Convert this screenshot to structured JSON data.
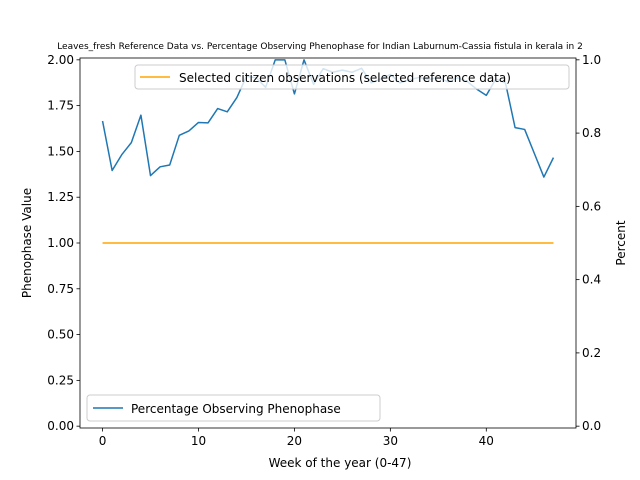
{
  "chart_data": {
    "type": "line",
    "title": "Leaves_fresh Reference Data vs. Percentage Observing Phenophase for Indian Laburnum-Cassia fistula in kerala in 2",
    "xlabel": "Week of the year (0-47)",
    "ylabel_left": "Phenophase Value",
    "ylabel_right": "Percent",
    "xlim": [
      -2.35,
      49.35
    ],
    "ylim_left": [
      -0.01,
      2.01
    ],
    "ylim_right": [
      -0.005,
      1.005
    ],
    "x_ticks": [
      0,
      10,
      20,
      30,
      40
    ],
    "y_ticks_left": [
      "0.00",
      "0.25",
      "0.50",
      "0.75",
      "1.00",
      "1.25",
      "1.50",
      "1.75",
      "2.00"
    ],
    "y_ticks_right": [
      "0.0",
      "0.2",
      "0.4",
      "0.6",
      "0.8",
      "1.0"
    ],
    "grid": false,
    "series": [
      {
        "name": "Selected citizen observations (selected reference data)",
        "axis": "left",
        "color": "#ffa500",
        "x": [
          0,
          47
        ],
        "values": [
          1.0,
          1.0
        ]
      },
      {
        "name": "Percentage Observing Phenophase",
        "axis": "right",
        "color": "#1f77b4",
        "x": [
          0,
          1,
          2,
          3,
          4,
          5,
          6,
          7,
          8,
          9,
          10,
          11,
          12,
          13,
          14,
          15,
          16,
          17,
          18,
          19,
          20,
          21,
          22,
          23,
          24,
          25,
          26,
          27,
          28,
          29,
          30,
          31,
          32,
          33,
          34,
          35,
          36,
          37,
          38,
          39,
          40,
          41,
          42,
          43,
          44,
          45,
          46,
          47
        ],
        "values": [
          0.833,
          0.698,
          0.741,
          0.774,
          0.849,
          0.684,
          0.708,
          0.713,
          0.794,
          0.806,
          0.829,
          0.828,
          0.867,
          0.858,
          0.897,
          0.955,
          0.951,
          0.925,
          1.0,
          1.0,
          0.907,
          1.0,
          0.933,
          0.976,
          0.966,
          0.972,
          0.966,
          0.977,
          0.937,
          0.948,
          0.96,
          0.937,
          0.946,
          0.952,
          0.946,
          0.952,
          0.94,
          0.951,
          0.941,
          0.92,
          0.903,
          0.948,
          0.937,
          0.815,
          0.81,
          0.745,
          0.68,
          0.733
        ]
      }
    ],
    "legend_top": "top-right",
    "legend_bottom": "bottom-left"
  }
}
